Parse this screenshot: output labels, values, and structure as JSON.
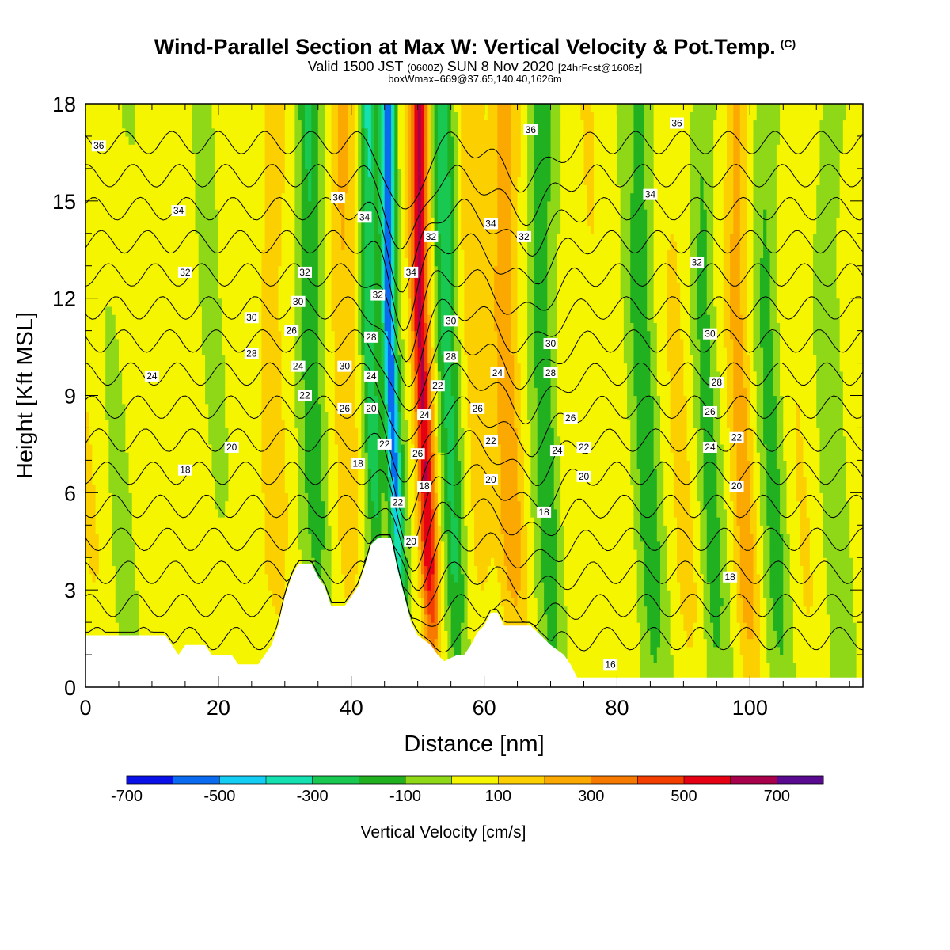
{
  "header": {
    "title": "Wind-Parallel Section at Max W: Vertical Velocity & Pot.Temp.",
    "copyright": "(C)",
    "subtitle_prefix": "Valid 1500 JST",
    "subtitle_utc": "(0600Z)",
    "subtitle_date": "SUN 8 Nov 2020",
    "subtitle_fcst": "[24hrFcst@1608z]",
    "box_info": "boxWmax=669@37.65,140.40,1626m"
  },
  "chart_data": {
    "type": "heatmap",
    "xlabel": "Distance [nm]",
    "ylabel": "Height [Kft MSL]",
    "xlim": [
      0,
      117
    ],
    "ylim": [
      0,
      18
    ],
    "x_ticks": [
      0,
      20,
      40,
      60,
      80,
      100
    ],
    "y_ticks": [
      0,
      3,
      6,
      9,
      12,
      15,
      18
    ],
    "colorbar": {
      "title": "Vertical Velocity [cm/s]",
      "tick_labels": [
        -700,
        -500,
        -300,
        -100,
        100,
        300,
        500,
        700
      ],
      "bounds": [
        -700,
        -600,
        -500,
        -400,
        -300,
        -200,
        -100,
        0,
        100,
        200,
        300,
        400,
        500,
        600,
        700,
        800
      ],
      "colors": [
        "#0a10e8",
        "#0a6af0",
        "#13cdf5",
        "#14e0b0",
        "#18c850",
        "#20b020",
        "#8ed818",
        "#f5f500",
        "#fcd000",
        "#fba800",
        "#f67a00",
        "#f43e00",
        "#e60014",
        "#a8004a",
        "#5a0a90"
      ]
    },
    "velocity_bands": [
      {
        "x": 0,
        "w": 2,
        "v": 50
      },
      {
        "x": 5,
        "w": 2.5,
        "v": -50
      },
      {
        "x": 10,
        "w": 1.5,
        "v": 50
      },
      {
        "x": 18,
        "w": 2,
        "v": -50
      },
      {
        "x": 28,
        "w": 2,
        "v": 120
      },
      {
        "x": 33.5,
        "w": 1.8,
        "v": -250
      },
      {
        "x": 38.5,
        "w": 1.8,
        "v": 170
      },
      {
        "x": 42.5,
        "w": 1.3,
        "v": -350
      },
      {
        "x": 45.5,
        "w": 1.1,
        "v": -600
      },
      {
        "x": 50.2,
        "w": 1.3,
        "v": 560
      },
      {
        "x": 54,
        "w": 1.6,
        "v": -280
      },
      {
        "x": 58,
        "w": 2,
        "v": 120
      },
      {
        "x": 63,
        "w": 2,
        "v": 230
      },
      {
        "x": 68.5,
        "w": 1.8,
        "v": -230
      },
      {
        "x": 75.5,
        "w": 2,
        "v": 40
      },
      {
        "x": 83.5,
        "w": 2,
        "v": -180
      },
      {
        "x": 89,
        "w": 2,
        "v": 70
      },
      {
        "x": 93,
        "w": 1.8,
        "v": -160
      },
      {
        "x": 98,
        "w": 1.6,
        "v": 200
      },
      {
        "x": 102.5,
        "w": 1.8,
        "v": -160
      },
      {
        "x": 107,
        "w": 2,
        "v": 40
      },
      {
        "x": 112,
        "w": 2,
        "v": -100
      }
    ],
    "terrain": [
      [
        0,
        1.6
      ],
      [
        12,
        1.6
      ],
      [
        13,
        1.3
      ],
      [
        14,
        1.0
      ],
      [
        15,
        1.3
      ],
      [
        18,
        1.3
      ],
      [
        19,
        1.0
      ],
      [
        22,
        1.0
      ],
      [
        23,
        0.7
      ],
      [
        26,
        0.7
      ],
      [
        27,
        1.0
      ],
      [
        28,
        1.3
      ],
      [
        29,
        1.9
      ],
      [
        30,
        2.8
      ],
      [
        31,
        3.4
      ],
      [
        32,
        3.8
      ],
      [
        34,
        3.8
      ],
      [
        35,
        3.4
      ],
      [
        36,
        3.1
      ],
      [
        37,
        2.5
      ],
      [
        39,
        2.5
      ],
      [
        40,
        2.8
      ],
      [
        41,
        3.1
      ],
      [
        42,
        3.7
      ],
      [
        43,
        4.4
      ],
      [
        44,
        4.6
      ],
      [
        46,
        4.6
      ],
      [
        47,
        3.6
      ],
      [
        48,
        2.8
      ],
      [
        49,
        2.0
      ],
      [
        50,
        1.6
      ],
      [
        52,
        1.3
      ],
      [
        53,
        1.0
      ],
      [
        54,
        0.8
      ],
      [
        56,
        1.0
      ],
      [
        57,
        1.0
      ],
      [
        58,
        1.3
      ],
      [
        59,
        1.7
      ],
      [
        60,
        1.9
      ],
      [
        61,
        2.3
      ],
      [
        62,
        2.3
      ],
      [
        63,
        1.9
      ],
      [
        67,
        1.9
      ],
      [
        70,
        1.3
      ],
      [
        72,
        1.0
      ],
      [
        73,
        0.7
      ],
      [
        74,
        0.3
      ],
      [
        117,
        0.3
      ]
    ],
    "isentropes": [
      16,
      18,
      20,
      22,
      24,
      26,
      28,
      30,
      32,
      34,
      36
    ],
    "contour_labels": [
      {
        "text": "36",
        "x": 2,
        "y": 16.7
      },
      {
        "text": "34",
        "x": 14,
        "y": 14.7
      },
      {
        "text": "32",
        "x": 15,
        "y": 12.8
      },
      {
        "text": "30",
        "x": 25,
        "y": 11.4
      },
      {
        "text": "28",
        "x": 25,
        "y": 10.3
      },
      {
        "text": "24",
        "x": 10,
        "y": 9.6
      },
      {
        "text": "20",
        "x": 22,
        "y": 7.4
      },
      {
        "text": "18",
        "x": 15,
        "y": 6.7
      },
      {
        "text": "36",
        "x": 38,
        "y": 15.1
      },
      {
        "text": "34",
        "x": 42,
        "y": 14.5
      },
      {
        "text": "32",
        "x": 33,
        "y": 12.8
      },
      {
        "text": "30",
        "x": 32,
        "y": 11.9
      },
      {
        "text": "26",
        "x": 31,
        "y": 11.0
      },
      {
        "text": "24",
        "x": 32,
        "y": 9.9
      },
      {
        "text": "22",
        "x": 33,
        "y": 9.0
      },
      {
        "text": "30",
        "x": 39,
        "y": 9.9
      },
      {
        "text": "26",
        "x": 39,
        "y": 8.6
      },
      {
        "text": "18",
        "x": 41,
        "y": 6.9
      },
      {
        "text": "32",
        "x": 44,
        "y": 12.1
      },
      {
        "text": "28",
        "x": 43,
        "y": 10.8
      },
      {
        "text": "24",
        "x": 43,
        "y": 9.6
      },
      {
        "text": "20",
        "x": 43,
        "y": 8.6
      },
      {
        "text": "22",
        "x": 45,
        "y": 7.5
      },
      {
        "text": "22",
        "x": 47,
        "y": 5.7
      },
      {
        "text": "20",
        "x": 49,
        "y": 4.5
      },
      {
        "text": "34",
        "x": 49,
        "y": 12.8
      },
      {
        "text": "32",
        "x": 52,
        "y": 13.9
      },
      {
        "text": "30",
        "x": 55,
        "y": 11.3
      },
      {
        "text": "28",
        "x": 55,
        "y": 10.2
      },
      {
        "text": "22",
        "x": 53,
        "y": 9.3
      },
      {
        "text": "24",
        "x": 51,
        "y": 8.4
      },
      {
        "text": "26",
        "x": 50,
        "y": 7.2
      },
      {
        "text": "18",
        "x": 51,
        "y": 6.2
      },
      {
        "text": "26",
        "x": 59,
        "y": 8.6
      },
      {
        "text": "22",
        "x": 61,
        "y": 7.6
      },
      {
        "text": "20",
        "x": 61,
        "y": 6.4
      },
      {
        "text": "24",
        "x": 62,
        "y": 9.7
      },
      {
        "text": "34",
        "x": 61,
        "y": 14.3
      },
      {
        "text": "32",
        "x": 66,
        "y": 13.9
      },
      {
        "text": "36",
        "x": 67,
        "y": 17.2
      },
      {
        "text": "30",
        "x": 70,
        "y": 10.6
      },
      {
        "text": "28",
        "x": 70,
        "y": 9.7
      },
      {
        "text": "26",
        "x": 73,
        "y": 8.3
      },
      {
        "text": "24",
        "x": 71,
        "y": 7.3
      },
      {
        "text": "22",
        "x": 75,
        "y": 7.4
      },
      {
        "text": "20",
        "x": 75,
        "y": 6.5
      },
      {
        "text": "18",
        "x": 69,
        "y": 5.4
      },
      {
        "text": "16",
        "x": 79,
        "y": 0.7
      },
      {
        "text": "34",
        "x": 85,
        "y": 15.2
      },
      {
        "text": "36",
        "x": 89,
        "y": 17.4
      },
      {
        "text": "32",
        "x": 92,
        "y": 13.1
      },
      {
        "text": "30",
        "x": 94,
        "y": 10.9
      },
      {
        "text": "28",
        "x": 95,
        "y": 9.4
      },
      {
        "text": "26",
        "x": 94,
        "y": 8.5
      },
      {
        "text": "24",
        "x": 94,
        "y": 7.4
      },
      {
        "text": "22",
        "x": 98,
        "y": 7.7
      },
      {
        "text": "20",
        "x": 98,
        "y": 6.2
      },
      {
        "text": "18",
        "x": 97,
        "y": 3.4
      }
    ]
  }
}
